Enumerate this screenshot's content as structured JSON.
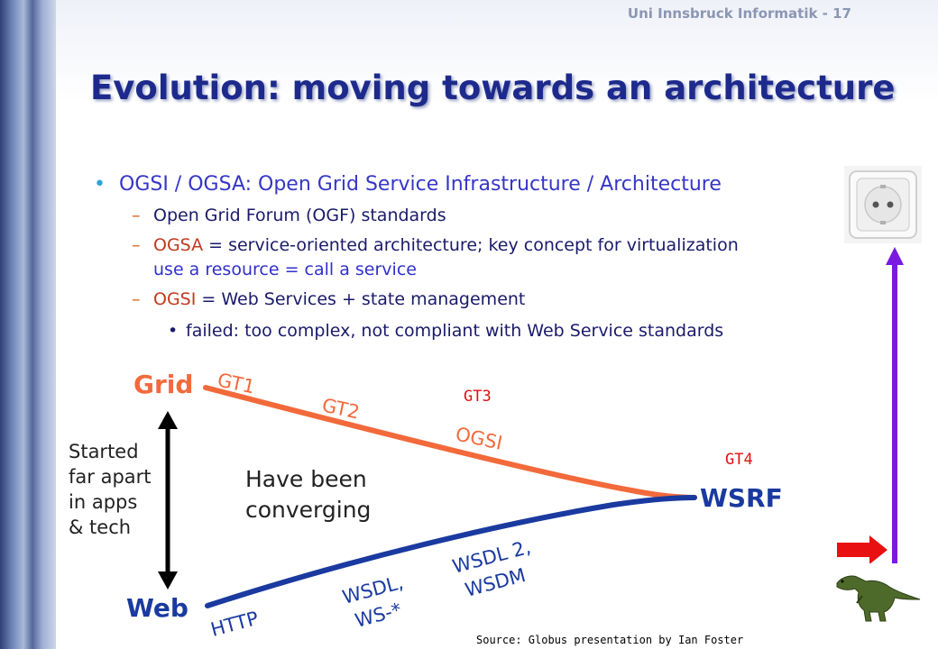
{
  "header": {
    "page_label": "Uni Innsbruck Informatik - 17"
  },
  "title": "Evolution: moving towards an architecture",
  "bullets": {
    "main": "OGSI / OGSA: Open Grid Service Infrastructure / Architecture",
    "sub1": "Open Grid Forum (OGF) standards",
    "sub2_key": "OGSA",
    "sub2_rest": " = service-oriented architecture; key concept for virtualization",
    "sub2_line2": "use a resource = call a service",
    "sub3_key": "OGSI",
    "sub3_rest": " = Web Services + state management",
    "subsub": "failed: too complex, not compliant with Web Service standards"
  },
  "diagram": {
    "grid_label": "Grid",
    "web_label": "Web",
    "wsrf_label": "WSRF",
    "started_lines": [
      "Started",
      "far apart",
      "in apps",
      "& tech"
    ],
    "converging_lines": [
      "Have been",
      "converging"
    ],
    "grid_path": [
      "GT1",
      "GT2",
      "OGSI"
    ],
    "web_path": [
      "HTTP",
      "WSDL,",
      "WS-*",
      "WSDL 2,",
      "WSDM"
    ],
    "gt3": "GT3",
    "gt4": "GT4",
    "colors": {
      "grid": "#f26a3b",
      "web": "#1a3aa0",
      "arrow": "#7a1ae0",
      "red_arrow": "#e81010"
    }
  },
  "source": "Source: Globus presentation by Ian Foster",
  "icons": [
    "power-socket-icon",
    "dinosaur-icon",
    "up-arrow-icon",
    "right-arrow-icon"
  ]
}
